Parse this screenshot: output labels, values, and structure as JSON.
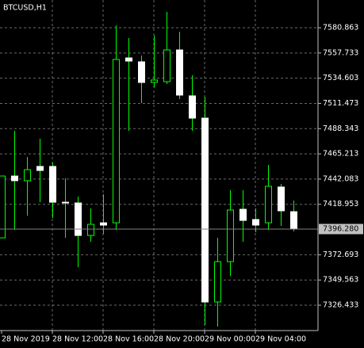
{
  "chart_data": {
    "type": "candlestick",
    "title": "BTCUSD,H1",
    "categories": [
      "28 Nov 2019",
      null,
      null,
      null,
      "28 Nov 12:00",
      null,
      null,
      null,
      "28 Nov 16:00",
      null,
      null,
      null,
      "28 Nov 20:00",
      null,
      null,
      null,
      "29 Nov 00:00",
      null,
      null,
      null,
      "29 Nov 04:00",
      null,
      null,
      null
    ],
    "series": [
      {
        "name": "open",
        "values": [
          7388.2,
          7444.9,
          7440.6,
          7453.7,
          7453.7,
          7420.9,
          7420.2,
          7390.4,
          7402.0,
          7402.0,
          7553.2,
          7549.6,
          7530.7,
          7531.4,
          7560.5,
          7518.4,
          7498.0,
          7329.4,
          7366.4,
          7414.4,
          7405.0,
          7402.0,
          7434.8,
          7412.2
        ]
      },
      {
        "name": "high",
        "values": [
          7444.9,
          7486.4,
          7462.4,
          7479.1,
          7457.3,
          7442.8,
          7426.0,
          7415.1,
          7428.2,
          7583.0,
          7571.4,
          7555.4,
          7573.6,
          7595.4,
          7577.2,
          7537.3,
          7517.6,
          7388.2,
          7431.9,
          7431.9,
          7415.1,
          7455.1,
          7437.7,
          7422.4
        ]
      },
      {
        "name": "low",
        "values": [
          7388.2,
          7395.5,
          7408.6,
          7420.9,
          7406.4,
          7388.2,
          7361.3,
          7384.6,
          7391.9,
          7395.5,
          7486.4,
          7511.8,
          7526.3,
          7529.3,
          7515.4,
          7486.4,
          7308.3,
          7306.8,
          7353.3,
          7384.6,
          7393.3,
          7395.5,
          7399.1,
          7394.1
        ]
      },
      {
        "name": "close",
        "values": [
          7444.9,
          7440.6,
          7450.7,
          7450.0,
          7420.9,
          7420.2,
          7390.4,
          7400.6,
          7399.9,
          7551.8,
          7550.3,
          7530.7,
          7532.9,
          7560.5,
          7519.1,
          7498.0,
          7329.4,
          7366.4,
          7413.7,
          7404.2,
          7399.9,
          7435.5,
          7413.0,
          7396.28
        ]
      }
    ],
    "bull_color": "#00ff00",
    "bear_color": "#ffffff",
    "ylim": [
      7303.2,
      7606.3
    ],
    "yticks": [
      7326.433,
      7349.563,
      7372.693,
      7418.953,
      7442.083,
      7465.213,
      7488.343,
      7511.473,
      7534.603,
      7557.733,
      7580.863
    ],
    "current_price": {
      "value": 7396.28,
      "label": "7396.280"
    },
    "grid": true
  }
}
